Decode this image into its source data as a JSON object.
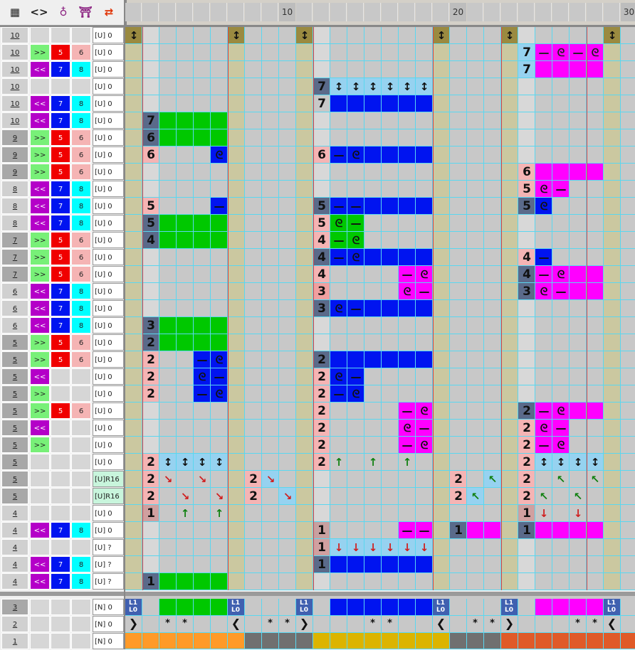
{
  "toolbar": {
    "icons": [
      "settings-icon",
      "code-icon",
      "tuck-icon",
      "knit-icon",
      "transfer-icon"
    ],
    "glyphs": [
      "▦",
      "<>",
      "♁",
      "⛩",
      "⇄"
    ]
  },
  "column_header": {
    "marks": [
      "10",
      "20",
      "30"
    ]
  },
  "rows": [
    {
      "n": "10",
      "dir": "",
      "c7": "",
      "c8": "",
      "status": "[U] 0",
      "dark": false
    },
    {
      "n": "10",
      "dir": ">>",
      "c7": "5",
      "c8": "6",
      "status": "[U] 0",
      "dark": false
    },
    {
      "n": "10",
      "dir": "<<",
      "c7": "7",
      "c8": "8",
      "status": "[U] 0",
      "dark": false
    },
    {
      "n": "10",
      "dir": "",
      "c7": "",
      "c8": "",
      "status": "[U] 0",
      "dark": false
    },
    {
      "n": "10",
      "dir": "<<",
      "c7": "7",
      "c8": "8",
      "status": "[U] 0",
      "dark": false
    },
    {
      "n": "10",
      "dir": "<<",
      "c7": "7",
      "c8": "8",
      "status": "[U] 0",
      "dark": false
    },
    {
      "n": "9",
      "dir": ">>",
      "c7": "5",
      "c8": "6",
      "status": "[U] 0",
      "dark": true
    },
    {
      "n": "9",
      "dir": ">>",
      "c7": "5",
      "c8": "6",
      "status": "[U] 0",
      "dark": true
    },
    {
      "n": "9",
      "dir": ">>",
      "c7": "5",
      "c8": "6",
      "status": "[U] 0",
      "dark": true
    },
    {
      "n": "8",
      "dir": "<<",
      "c7": "7",
      "c8": "8",
      "status": "[U] 0",
      "dark": false
    },
    {
      "n": "8",
      "dir": "<<",
      "c7": "7",
      "c8": "8",
      "status": "[U] 0",
      "dark": false
    },
    {
      "n": "8",
      "dir": "<<",
      "c7": "7",
      "c8": "8",
      "status": "[U] 0",
      "dark": false
    },
    {
      "n": "7",
      "dir": ">>",
      "c7": "5",
      "c8": "6",
      "status": "[U] 0",
      "dark": true
    },
    {
      "n": "7",
      "dir": ">>",
      "c7": "5",
      "c8": "6",
      "status": "[U] 0",
      "dark": true
    },
    {
      "n": "7",
      "dir": ">>",
      "c7": "5",
      "c8": "6",
      "status": "[U] 0",
      "dark": true
    },
    {
      "n": "6",
      "dir": "<<",
      "c7": "7",
      "c8": "8",
      "status": "[U] 0",
      "dark": false
    },
    {
      "n": "6",
      "dir": "<<",
      "c7": "7",
      "c8": "8",
      "status": "[U] 0",
      "dark": false
    },
    {
      "n": "6",
      "dir": "<<",
      "c7": "7",
      "c8": "8",
      "status": "[U] 0",
      "dark": false
    },
    {
      "n": "5",
      "dir": ">>",
      "c7": "5",
      "c8": "6",
      "status": "[U] 0",
      "dark": true
    },
    {
      "n": "5",
      "dir": ">>",
      "c7": "5",
      "c8": "6",
      "status": "[U] 0",
      "dark": true
    },
    {
      "n": "5",
      "dir": "<<",
      "c7": "",
      "c8": "",
      "status": "[U] 0",
      "dark": true
    },
    {
      "n": "5",
      "dir": ">>",
      "c7": "",
      "c8": "",
      "status": "[U] 0",
      "dark": true
    },
    {
      "n": "5",
      "dir": ">>",
      "c7": "5",
      "c8": "6",
      "status": "[U] 0",
      "dark": true
    },
    {
      "n": "5",
      "dir": "<<",
      "c7": "",
      "c8": "",
      "status": "[U] 0",
      "dark": true
    },
    {
      "n": "5",
      "dir": ">>",
      "c7": "",
      "c8": "",
      "status": "[U] 0",
      "dark": true
    },
    {
      "n": "5",
      "dir": "",
      "c7": "",
      "c8": "",
      "status": "[U] 0",
      "dark": true
    },
    {
      "n": "5",
      "dir": "",
      "c7": "",
      "c8": "",
      "status": "[U]R16",
      "dark": true
    },
    {
      "n": "5",
      "dir": "",
      "c7": "",
      "c8": "",
      "status": "[U]R16",
      "dark": true
    },
    {
      "n": "4",
      "dir": "",
      "c7": "",
      "c8": "",
      "status": "[U] 0",
      "dark": false
    },
    {
      "n": "4",
      "dir": "<<",
      "c7": "7",
      "c8": "8",
      "status": "[U] 0",
      "dark": false
    },
    {
      "n": "4",
      "dir": "",
      "c7": "",
      "c8": "",
      "status": "[U] ?",
      "dark": false
    },
    {
      "n": "4",
      "dir": "<<",
      "c7": "7",
      "c8": "8",
      "status": "[U] ?",
      "dark": false
    },
    {
      "n": "4",
      "dir": "<<",
      "c7": "7",
      "c8": "8",
      "status": "[U] ?",
      "dark": false
    }
  ],
  "bottom_rows": [
    {
      "n": "3",
      "status": "[N] 0",
      "dark": true
    },
    {
      "n": "2",
      "status": "[N] 0",
      "dark": false
    },
    {
      "n": "1",
      "status": "[N] 0",
      "dark": false
    }
  ],
  "colors": {
    "tan": "#cbc8a0",
    "green": "#00c800",
    "blue": "#0014f0",
    "magenta": "#ff00ff",
    "lightblue": "#96d2f0",
    "red": "#f00000",
    "pink": "#f5b4b4",
    "lime": "#78f078",
    "purple": "#b400c8",
    "cyan": "#00ffff",
    "orange": "#ff9a28",
    "gold": "#dcb400",
    "darkgray": "#707070",
    "rust": "#e05a28"
  },
  "bottom_labels": {
    "l1": "L1",
    "l0": "L0",
    "star": "*"
  }
}
